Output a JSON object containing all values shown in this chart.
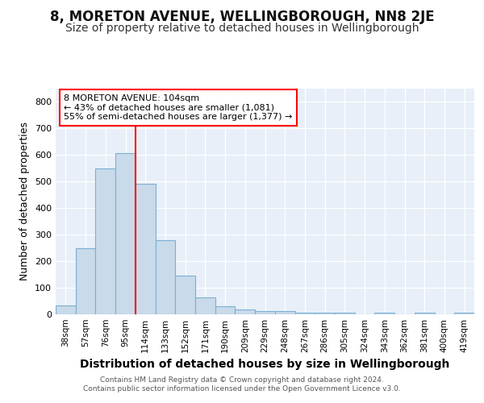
{
  "title": "8, MORETON AVENUE, WELLINGBOROUGH, NN8 2JE",
  "subtitle": "Size of property relative to detached houses in Wellingborough",
  "xlabel": "Distribution of detached houses by size in Wellingborough",
  "ylabel": "Number of detached properties",
  "categories": [
    "38sqm",
    "57sqm",
    "76sqm",
    "95sqm",
    "114sqm",
    "133sqm",
    "152sqm",
    "171sqm",
    "190sqm",
    "209sqm",
    "229sqm",
    "248sqm",
    "267sqm",
    "286sqm",
    "305sqm",
    "324sqm",
    "343sqm",
    "362sqm",
    "381sqm",
    "400sqm",
    "419sqm"
  ],
  "values": [
    32,
    248,
    548,
    607,
    493,
    280,
    145,
    63,
    30,
    18,
    13,
    12,
    5,
    5,
    5,
    0,
    7,
    0,
    6,
    0,
    5
  ],
  "bar_color": "#c9daea",
  "bar_edge_color": "#7aafd4",
  "red_line_index": 4,
  "annotation_title": "8 MORETON AVENUE: 104sqm",
  "annotation_line1": "← 43% of detached houses are smaller (1,081)",
  "annotation_line2": "55% of semi-detached houses are larger (1,377) →",
  "ylim": [
    0,
    850
  ],
  "yticks": [
    0,
    100,
    200,
    300,
    400,
    500,
    600,
    700,
    800
  ],
  "footer1": "Contains HM Land Registry data © Crown copyright and database right 2024.",
  "footer2": "Contains public sector information licensed under the Open Government Licence v3.0.",
  "fig_bg_color": "#ffffff",
  "plot_bg_color": "#e8eff8",
  "grid_color": "#ffffff",
  "title_fontsize": 12,
  "subtitle_fontsize": 10,
  "ylabel_fontsize": 9,
  "xlabel_fontsize": 10
}
